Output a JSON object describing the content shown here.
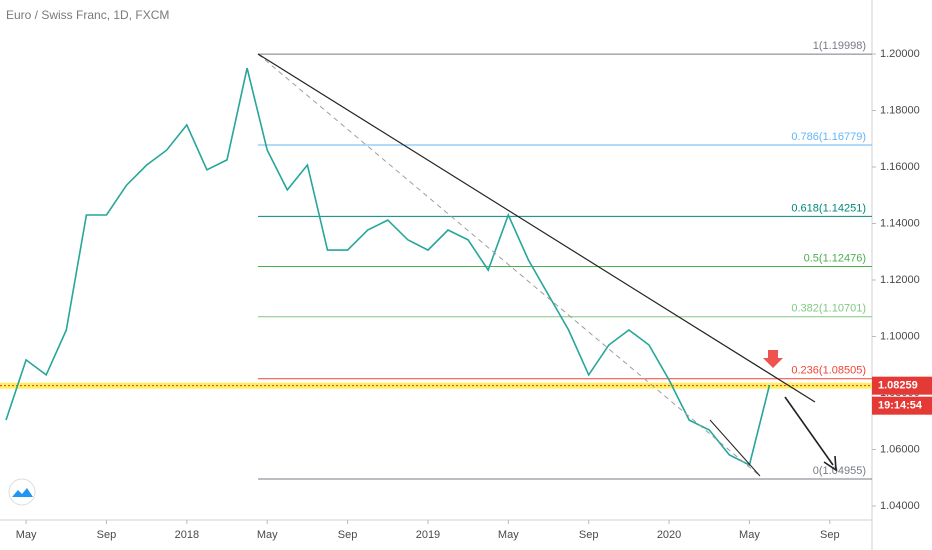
{
  "chart_data": {
    "type": "line",
    "title": "Euro / Swiss Franc, 1D, FXCM",
    "x": [
      "2017-04",
      "2017-05",
      "2017-06",
      "2017-07",
      "2017-08",
      "2017-09",
      "2017-10",
      "2017-11",
      "2017-12",
      "2018-01",
      "2018-02",
      "2018-03",
      "2018-04",
      "2018-05",
      "2018-06",
      "2018-07",
      "2018-08",
      "2018-09",
      "2018-10",
      "2018-11",
      "2018-12",
      "2019-01",
      "2019-02",
      "2019-03",
      "2019-04",
      "2019-05",
      "2019-06",
      "2019-07",
      "2019-08",
      "2019-09",
      "2019-10",
      "2019-11",
      "2019-12",
      "2020-01",
      "2020-02",
      "2020-03",
      "2020-04",
      "2020-05",
      "2020-06"
    ],
    "series": [
      {
        "name": "EURCHF",
        "color": "#26a69a",
        "values": [
          1.0704,
          1.0917,
          1.0864,
          1.1023,
          1.143,
          1.143,
          1.1536,
          1.1607,
          1.166,
          1.1749,
          1.159,
          1.1625,
          1.195,
          1.166,
          1.1519,
          1.1607,
          1.1306,
          1.1306,
          1.1377,
          1.1412,
          1.1342,
          1.1306,
          1.1377,
          1.1342,
          1.1235,
          1.143,
          1.1271,
          1.1147,
          1.1023,
          1.0864,
          1.097,
          1.1023,
          1.097,
          1.0846,
          1.0704,
          1.0669,
          1.0581,
          1.0545,
          1.0828
        ]
      }
    ],
    "xlim": [
      "2017-04",
      "2020-11"
    ],
    "xticks": [
      {
        "value": "2017-05",
        "label": "May"
      },
      {
        "value": "2017-09",
        "label": "Sep"
      },
      {
        "value": "2018-01",
        "label": "2018"
      },
      {
        "value": "2018-05",
        "label": "May"
      },
      {
        "value": "2018-09",
        "label": "Sep"
      },
      {
        "value": "2019-01",
        "label": "2019"
      },
      {
        "value": "2019-05",
        "label": "May"
      },
      {
        "value": "2019-09",
        "label": "Sep"
      },
      {
        "value": "2020-01",
        "label": "2020"
      },
      {
        "value": "2020-05",
        "label": "May"
      },
      {
        "value": "2020-09",
        "label": "Sep"
      }
    ],
    "ylim": [
      1.03504,
      1.21912
    ],
    "yticks": [
      {
        "value": 1.04,
        "label": "1.04000"
      },
      {
        "value": 1.06,
        "label": "1.06000"
      },
      {
        "value": 1.08,
        "label": "1.08000"
      },
      {
        "value": 1.1,
        "label": "1.10000"
      },
      {
        "value": 1.12,
        "label": "1.12000"
      },
      {
        "value": 1.14,
        "label": "1.14000"
      },
      {
        "value": 1.16,
        "label": "1.16000"
      },
      {
        "value": 1.18,
        "label": "1.18000"
      },
      {
        "value": 1.2,
        "label": "1.20000"
      }
    ],
    "fib_levels": [
      {
        "label": "1(1.19998)",
        "value": 1.19998,
        "color": "#787b86"
      },
      {
        "label": "0.786(1.16779)",
        "value": 1.16779,
        "color": "#64b5f6"
      },
      {
        "label": "0.618(1.14251)",
        "value": 1.14251,
        "color": "#00897b"
      },
      {
        "label": "0.5(1.12476)",
        "value": 1.12476,
        "color": "#4caf50"
      },
      {
        "label": "0.382(1.10701)",
        "value": 1.10701,
        "color": "#81c784"
      },
      {
        "label": "0.236(1.08505)",
        "value": 1.08505,
        "color": "#f44336"
      },
      {
        "label": "0(1.04955)",
        "value": 1.04955,
        "color": "#787b86"
      }
    ],
    "last_price": 1.08259,
    "countdown": "19:14:54"
  }
}
